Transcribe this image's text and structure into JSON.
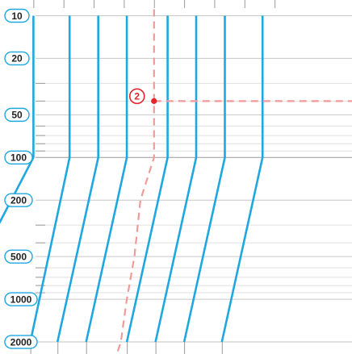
{
  "chart_data": {
    "type": "line",
    "title": "",
    "xlabel": "",
    "ylabel": "",
    "y_scale": "log",
    "y_inverted": true,
    "ylim": [
      10,
      2000
    ],
    "y_ticks": [
      {
        "value": 10,
        "label": "10"
      },
      {
        "value": 20,
        "label": "20"
      },
      {
        "value": 50,
        "label": "50"
      },
      {
        "value": 100,
        "label": "100"
      },
      {
        "value": 200,
        "label": "200"
      },
      {
        "value": 500,
        "label": "500"
      },
      {
        "value": 1000,
        "label": "1000"
      },
      {
        "value": 2000,
        "label": "2000"
      }
    ],
    "y_minor_ticks": [
      30,
      40,
      60,
      70,
      80,
      90,
      300,
      400,
      600,
      700,
      800,
      900
    ],
    "x_grid": [
      1,
      2,
      3,
      4,
      5,
      6,
      7,
      8,
      9
    ],
    "x_bottom_ticks": [
      0.9,
      1.8,
      2.75,
      4.1,
      5.05,
      6.0,
      7.25
    ],
    "xlim": [
      0,
      11.5
    ],
    "grid": true,
    "series_color": "#1fa7e0",
    "reference_color": "#f19a9a",
    "marker_color": "#e3262d",
    "series": [
      {
        "x": [
          1.0,
          1.0,
          -0.9
        ],
        "y": [
          10,
          100,
          600
        ]
      },
      {
        "x": [
          2.2,
          2.2,
          0.9
        ],
        "y": [
          10,
          100,
          2000
        ]
      },
      {
        "x": [
          3.15,
          3.15,
          1.8
        ],
        "y": [
          10,
          100,
          2000
        ]
      },
      {
        "x": [
          4.1,
          4.1,
          2.75
        ],
        "y": [
          10,
          100,
          2000
        ]
      },
      {
        "x": [
          5.45,
          5.45,
          4.1
        ],
        "y": [
          10,
          100,
          2000
        ]
      },
      {
        "x": [
          6.4,
          6.4,
          5.05
        ],
        "y": [
          10,
          100,
          2000
        ]
      },
      {
        "x": [
          7.35,
          7.35,
          6.0
        ],
        "y": [
          10,
          100,
          2000
        ]
      },
      {
        "x": [
          8.6,
          8.6,
          7.25
        ],
        "y": [
          10,
          100,
          2000
        ]
      }
    ],
    "reference_path": {
      "x": [
        5.0,
        5.0,
        4.55,
        4.35,
        4.1,
        3.9,
        3.75
      ],
      "y": [
        9,
        100,
        200,
        500,
        1000,
        2000,
        2500
      ]
    },
    "reference_horizontal": {
      "y": 40,
      "x_from": 5.0,
      "x_to": 11.5
    },
    "marker": {
      "label": "2",
      "x": 5.0,
      "y": 40
    }
  }
}
